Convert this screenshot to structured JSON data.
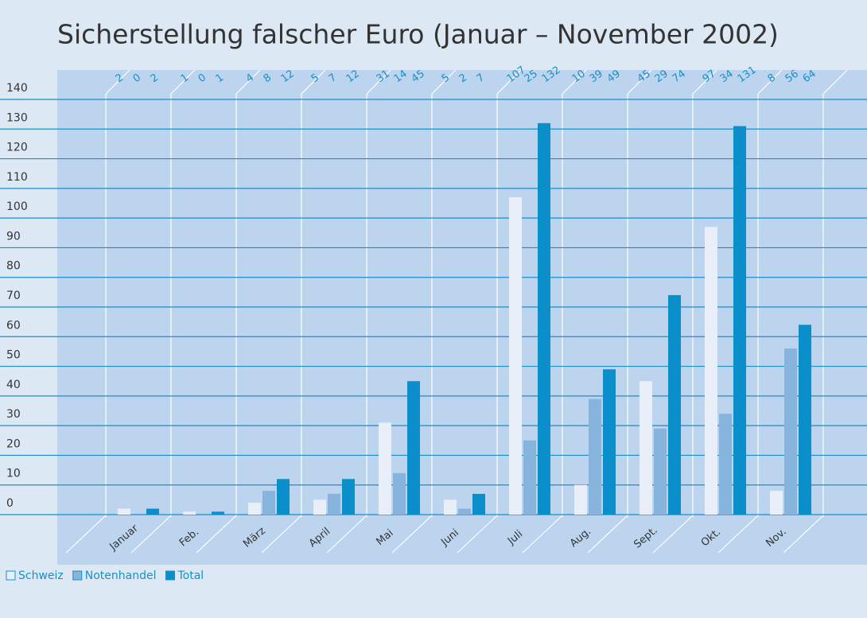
{
  "chart_data": {
    "type": "bar",
    "title": "Sicherstellung falscher Euro (Januar – November 2002)",
    "categories": [
      "Januar",
      "Feb.",
      "März",
      "April",
      "Mai",
      "Juni",
      "Juli",
      "Aug.",
      "Sept.",
      "Okt.",
      "Nov."
    ],
    "series": [
      {
        "name": "Schweiz",
        "color": "#e8eff9",
        "values": [
          2,
          1,
          4,
          5,
          31,
          5,
          107,
          10,
          45,
          97,
          8
        ]
      },
      {
        "name": "Notenhandel",
        "color": "#86b4dd",
        "values": [
          0,
          0,
          8,
          7,
          14,
          2,
          25,
          39,
          29,
          34,
          56
        ]
      },
      {
        "name": "Total",
        "color": "#0a8fcb",
        "values": [
          2,
          1,
          12,
          12,
          45,
          7,
          132,
          49,
          74,
          131,
          64
        ]
      }
    ],
    "ylim": [
      0,
      140
    ],
    "yticks": [
      0,
      10,
      20,
      30,
      40,
      50,
      60,
      70,
      80,
      90,
      100,
      110,
      120,
      130,
      140
    ],
    "grid": true
  }
}
